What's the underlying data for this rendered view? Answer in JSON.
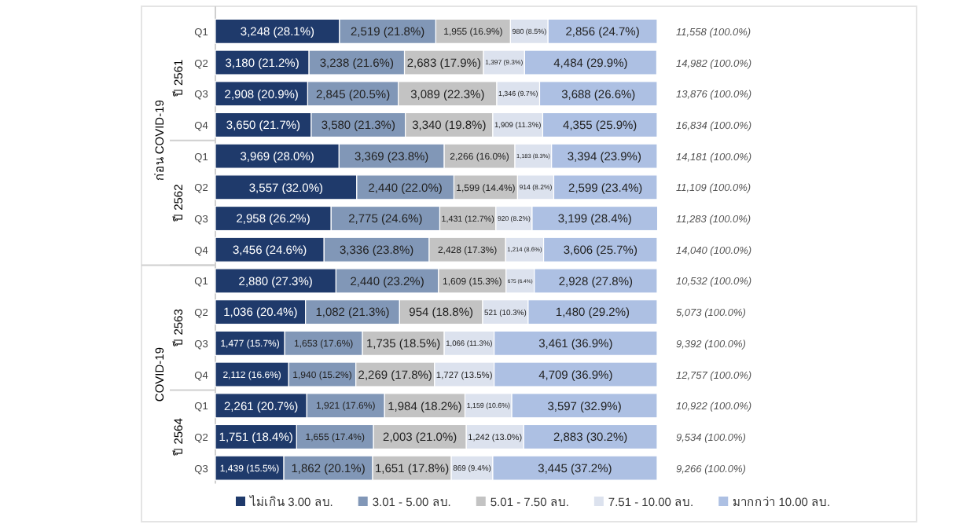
{
  "chart_data": {
    "type": "bar",
    "orientation": "horizontal",
    "stacked": true,
    "categories": [
      "Q1",
      "Q2",
      "Q3",
      "Q4",
      "Q1",
      "Q2",
      "Q3",
      "Q4",
      "Q1",
      "Q2",
      "Q3",
      "Q4",
      "Q1",
      "Q2",
      "Q3"
    ],
    "series": [
      {
        "name": "ไม่เกิน 3.00 ลบ.",
        "color": "#1f3a6b",
        "values": [
          28.1,
          21.2,
          20.9,
          21.7,
          28.0,
          32.0,
          26.2,
          24.6,
          27.3,
          20.4,
          15.7,
          16.6,
          20.7,
          18.4,
          15.5
        ],
        "value_labels": [
          "3,248 (28.1%)",
          "3,180 (21.2%)",
          "2,908 (20.9%)",
          "3,650 (21.7%)",
          "3,969 (28.0%)",
          "3,557 (32.0%)",
          "2,958 (26.2%)",
          "3,456 (24.6%)",
          "2,880 (27.3%)",
          "1,036 (20.4%)",
          "1,477 (15.7%)",
          "2,112 (16.6%)",
          "2,261 (20.7%)",
          "1,751 (18.4%)",
          "1,439 (15.5%)"
        ]
      },
      {
        "name": "3.01 - 5.00 ลบ.",
        "color": "#8197b7",
        "values": [
          21.8,
          21.6,
          20.5,
          21.3,
          23.8,
          22.0,
          24.6,
          23.8,
          23.2,
          21.3,
          17.6,
          15.2,
          17.6,
          17.4,
          20.1
        ],
        "value_labels": [
          "2,519 (21.8%)",
          "3,238 (21.6%)",
          "2,845 (20.5%)",
          "3,580 (21.3%)",
          "3,369 (23.8%)",
          "2,440 (22.0%)",
          "2,775 (24.6%)",
          "3,336 (23.8%)",
          "2,440 (23.2%)",
          "1,082 (21.3%)",
          "1,653 (17.6%)",
          "1,940 (15.2%)",
          "1,921 (17.6%)",
          "1,655 (17.4%)",
          "1,862 (20.1%)"
        ]
      },
      {
        "name": "5.01 - 7.50 ลบ.",
        "color": "#c3c3c3",
        "values": [
          16.9,
          17.9,
          22.3,
          19.8,
          16.0,
          14.4,
          12.7,
          17.3,
          15.3,
          18.8,
          18.5,
          17.8,
          18.2,
          21.0,
          17.8
        ],
        "value_labels": [
          "1,955 (16.9%)",
          "2,683 (17.9%)",
          "3,089 (22.3%)",
          "3,340 (19.8%)",
          "2,266 (16.0%)",
          "1,599 (14.4%)",
          "1,431 (12.7%)",
          "2,428 (17.3%)",
          "1,609 (15.3%)",
          "954 (18.8%)",
          "1,735 (18.5%)",
          "2,269 (17.8%)",
          "1,984 (18.2%)",
          "2,003 (21.0%)",
          "1,651 (17.8%)"
        ]
      },
      {
        "name": "7.51 - 10.00 ลบ.",
        "color": "#dce2ee",
        "values": [
          8.5,
          9.3,
          9.7,
          11.3,
          8.3,
          8.2,
          8.2,
          8.6,
          6.4,
          10.3,
          11.3,
          13.5,
          10.6,
          13.0,
          9.4
        ],
        "value_labels": [
          "980 (8.5%)",
          "1,397 (9.3%)",
          "1,346 (9.7%)",
          "1,909 (11.3%)",
          "1,183 (8.3%)",
          "914 (8.2%)",
          "920 (8.2%)",
          "1,214 (8.6%)",
          "675 (6.4%)",
          "521 (10.3%)",
          "1,066 (11.3%)",
          "1,727 (13.5%)",
          "1,159 (10.6%)",
          "1,242 (13.0%)",
          "869 (9.4%)"
        ]
      },
      {
        "name": "มากกว่า 10.00 ลบ.",
        "color": "#adc0e3",
        "values": [
          24.7,
          29.9,
          26.6,
          25.9,
          23.9,
          23.4,
          28.4,
          25.7,
          27.8,
          29.2,
          36.9,
          36.9,
          32.9,
          30.2,
          37.2
        ],
        "value_labels": [
          "2,856 (24.7%)",
          "4,484 (29.9%)",
          "3,688 (26.6%)",
          "4,355 (25.9%)",
          "3,394 (23.9%)",
          "2,599 (23.4%)",
          "3,199 (28.4%)",
          "3,606 (25.7%)",
          "2,928 (27.8%)",
          "1,480 (29.2%)",
          "3,461 (36.9%)",
          "4,709 (36.9%)",
          "3,597 (32.9%)",
          "2,883 (30.2%)",
          "3,445 (37.2%)"
        ]
      }
    ],
    "totals": [
      "11,558 (100.0%)",
      "14,982 (100.0%)",
      "13,876 (100.0%)",
      "16,834 (100.0%)",
      "14,181 (100.0%)",
      "11,109 (100.0%)",
      "11,283 (100.0%)",
      "14,040 (100.0%)",
      "10,532 (100.0%)",
      "5,073 (100.0%)",
      "9,392 (100.0%)",
      "12,757 (100.0%)",
      "10,922 (100.0%)",
      "9,534 (100.0%)",
      "9,266 (100.0%)"
    ],
    "annotations": [
      "ก่อน COVID-19",
      "COVID-19",
      "ปี 2561",
      "ปี 2562",
      "ปี 2563",
      "ปี 2564"
    ],
    "legend": "bottom"
  }
}
